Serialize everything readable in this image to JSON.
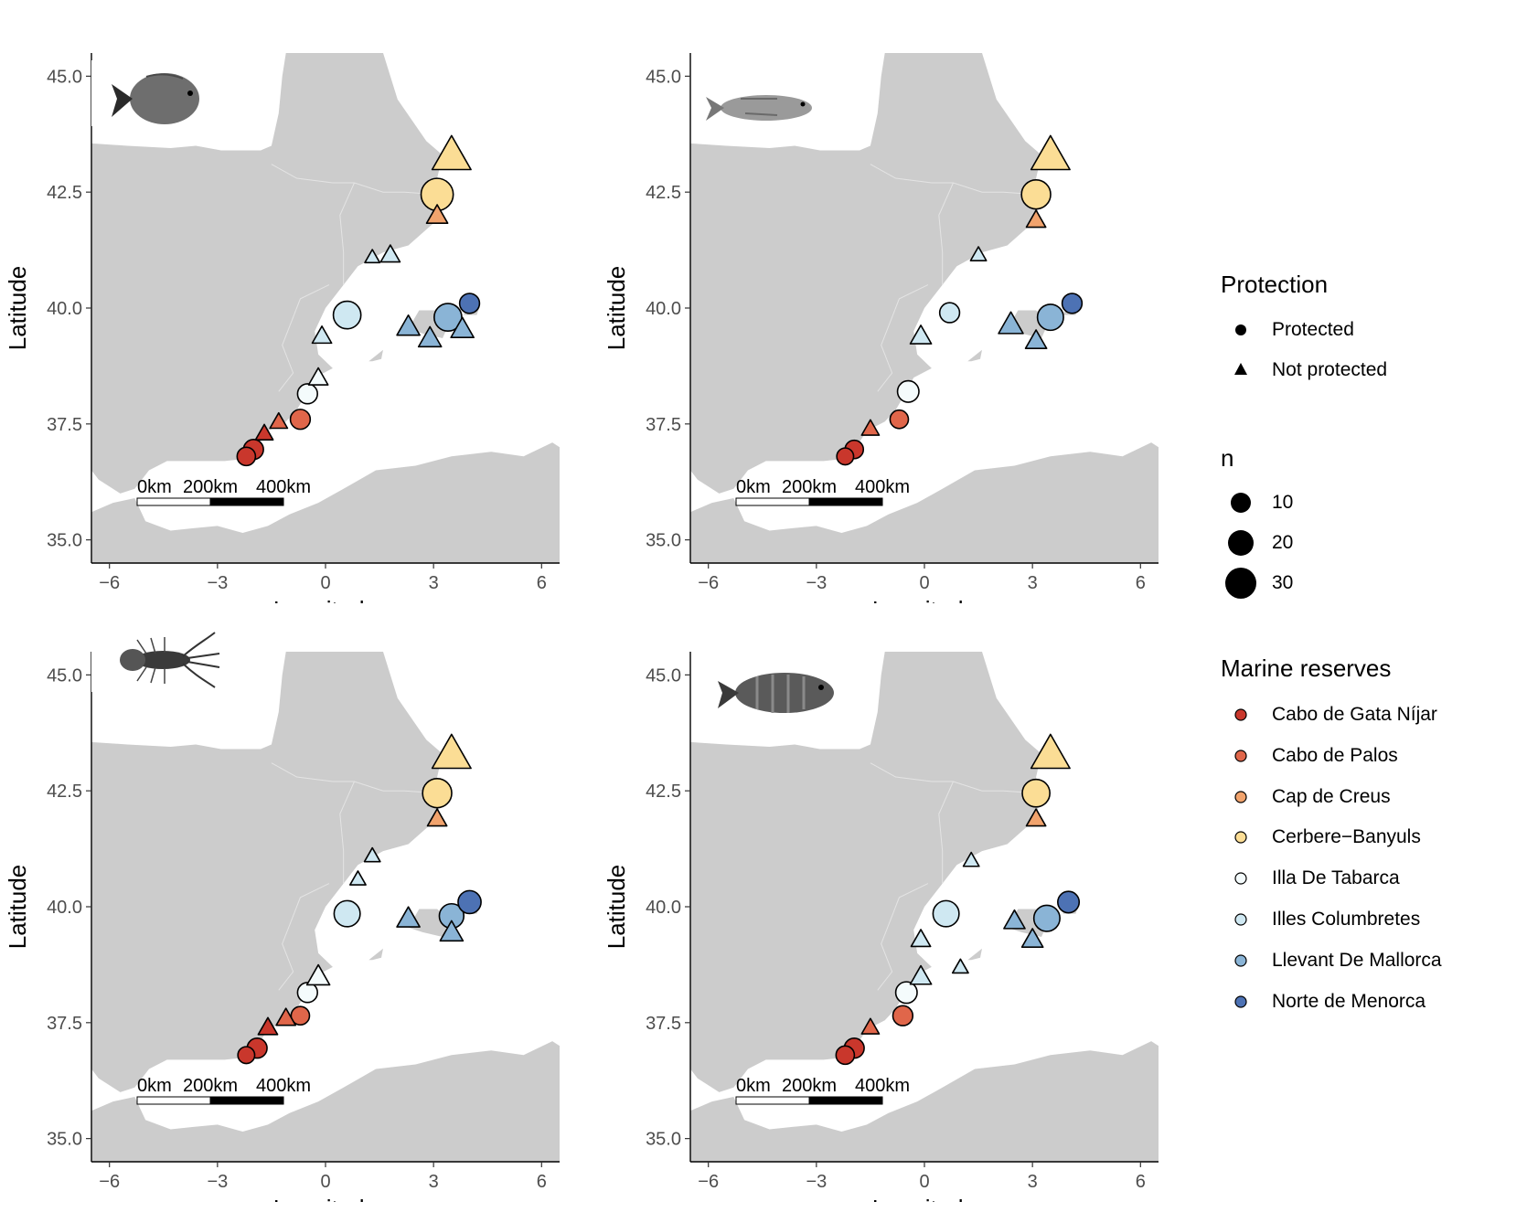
{
  "axis_labels": {
    "x": "Longitude",
    "y": "Latitude",
    "x_ticks": [
      "−6",
      "−3",
      "0",
      "3",
      "6"
    ],
    "y_ticks": [
      "35.0",
      "37.5",
      "40.0",
      "42.5",
      "45.0"
    ]
  },
  "scale_bar": {
    "labels": [
      "0km",
      "200km",
      "400km"
    ]
  },
  "colors": {
    "land": "#cccccc",
    "sea": "#ffffff",
    "Cabo de Gata Níjar": "#c9372c",
    "Cabo de Palos": "#e0664a",
    "Cap de Creus": "#f1a36d",
    "Cerbere−Banyuls": "#fbdd95",
    "Illa De Tabarca": "#f4fbfc",
    "Illes Columbretes": "#cfe8f2",
    "Llevant De Mallorca": "#8ab4d6",
    "Norte de Menorca": "#4d72b4"
  },
  "chart_data": [
    {
      "type": "scatter",
      "panel": "top-left",
      "species_icon": "saddled-seabream-fish-icon",
      "xlabel": "Longitude",
      "ylabel": "Latitude",
      "xlim": [
        -6.5,
        6.5
      ],
      "ylim": [
        34.5,
        45.5
      ],
      "points": [
        {
          "reserve": "Cabo de Gata Níjar",
          "protection": "Protected",
          "lon": -2.2,
          "lat": 36.8,
          "n": 12
        },
        {
          "reserve": "Cabo de Gata Níjar",
          "protection": "Protected",
          "lon": -2.0,
          "lat": 36.95,
          "n": 14
        },
        {
          "reserve": "Cabo de Gata Níjar",
          "protection": "Not protected",
          "lon": -1.7,
          "lat": 37.3,
          "n": 8
        },
        {
          "reserve": "Cabo de Palos",
          "protection": "Not protected",
          "lon": -1.3,
          "lat": 37.55,
          "n": 8
        },
        {
          "reserve": "Cabo de Palos",
          "protection": "Protected",
          "lon": -0.7,
          "lat": 37.6,
          "n": 14
        },
        {
          "reserve": "Illa De Tabarca",
          "protection": "Protected",
          "lon": -0.5,
          "lat": 38.15,
          "n": 14
        },
        {
          "reserve": "Illa De Tabarca",
          "protection": "Not protected",
          "lon": -0.2,
          "lat": 38.5,
          "n": 10
        },
        {
          "reserve": "Illes Columbretes",
          "protection": "Protected",
          "lon": 0.6,
          "lat": 39.85,
          "n": 24
        },
        {
          "reserve": "Illes Columbretes",
          "protection": "Not protected",
          "lon": -0.1,
          "lat": 39.4,
          "n": 10
        },
        {
          "reserve": "Illes Columbretes",
          "protection": "Not protected",
          "lon": 1.3,
          "lat": 41.1,
          "n": 5
        },
        {
          "reserve": "Illes Columbretes",
          "protection": "Not protected",
          "lon": 1.8,
          "lat": 41.15,
          "n": 10
        },
        {
          "reserve": "Llevant De Mallorca",
          "protection": "Not protected",
          "lon": 2.3,
          "lat": 39.6,
          "n": 14
        },
        {
          "reserve": "Llevant De Mallorca",
          "protection": "Protected",
          "lon": 3.4,
          "lat": 39.8,
          "n": 24
        },
        {
          "reserve": "Llevant De Mallorca",
          "protection": "Not protected",
          "lon": 2.9,
          "lat": 39.35,
          "n": 14
        },
        {
          "reserve": "Llevant De Mallorca",
          "protection": "Not protected",
          "lon": 3.8,
          "lat": 39.55,
          "n": 14
        },
        {
          "reserve": "Norte de Menorca",
          "protection": "Protected",
          "lon": 4.0,
          "lat": 40.1,
          "n": 14
        },
        {
          "reserve": "Cap de Creus",
          "protection": "Not protected",
          "lon": 3.1,
          "lat": 42.0,
          "n": 12
        },
        {
          "reserve": "Cerbere−Banyuls",
          "protection": "Protected",
          "lon": 3.1,
          "lat": 42.45,
          "n": 30
        },
        {
          "reserve": "Cerbere−Banyuls",
          "protection": "Not protected",
          "lon": 3.5,
          "lat": 43.3,
          "n": 32
        }
      ]
    },
    {
      "type": "scatter",
      "panel": "top-right",
      "species_icon": "brown-meagre-fish-icon",
      "xlabel": "Longitude",
      "ylabel": "Latitude",
      "xlim": [
        -6.5,
        6.5
      ],
      "ylim": [
        34.5,
        45.5
      ],
      "points": [
        {
          "reserve": "Cabo de Gata Níjar",
          "protection": "Protected",
          "lon": -2.2,
          "lat": 36.8,
          "n": 10
        },
        {
          "reserve": "Cabo de Gata Níjar",
          "protection": "Protected",
          "lon": -1.95,
          "lat": 36.95,
          "n": 12
        },
        {
          "reserve": "Cabo de Palos",
          "protection": "Not protected",
          "lon": -1.5,
          "lat": 37.4,
          "n": 8
        },
        {
          "reserve": "Cabo de Palos",
          "protection": "Protected",
          "lon": -0.7,
          "lat": 37.6,
          "n": 12
        },
        {
          "reserve": "Illa De Tabarca",
          "protection": "Protected",
          "lon": -0.45,
          "lat": 38.2,
          "n": 16
        },
        {
          "reserve": "Illes Columbretes",
          "protection": "Not protected",
          "lon": -0.1,
          "lat": 39.4,
          "n": 12
        },
        {
          "reserve": "Illes Columbretes",
          "protection": "Protected",
          "lon": 0.7,
          "lat": 39.9,
          "n": 14
        },
        {
          "reserve": "Illes Columbretes",
          "protection": "Not protected",
          "lon": 1.5,
          "lat": 41.15,
          "n": 6
        },
        {
          "reserve": "Llevant De Mallorca",
          "protection": "Not protected",
          "lon": 2.4,
          "lat": 39.65,
          "n": 16
        },
        {
          "reserve": "Llevant De Mallorca",
          "protection": "Protected",
          "lon": 3.5,
          "lat": 39.8,
          "n": 22
        },
        {
          "reserve": "Llevant De Mallorca",
          "protection": "Not protected",
          "lon": 3.1,
          "lat": 39.3,
          "n": 12
        },
        {
          "reserve": "Norte de Menorca",
          "protection": "Protected",
          "lon": 4.1,
          "lat": 40.1,
          "n": 14
        },
        {
          "reserve": "Cap de Creus",
          "protection": "Not protected",
          "lon": 3.1,
          "lat": 41.9,
          "n": 10
        },
        {
          "reserve": "Cerbere−Banyuls",
          "protection": "Protected",
          "lon": 3.1,
          "lat": 42.45,
          "n": 26
        },
        {
          "reserve": "Cerbere−Banyuls",
          "protection": "Not protected",
          "lon": 3.5,
          "lat": 43.3,
          "n": 32
        }
      ]
    },
    {
      "type": "scatter",
      "panel": "bottom-left",
      "species_icon": "spiny-lobster-icon",
      "xlabel": "Longitude",
      "ylabel": "Latitude",
      "xlim": [
        -6.5,
        6.5
      ],
      "ylim": [
        34.5,
        45.5
      ],
      "points": [
        {
          "reserve": "Cabo de Gata Níjar",
          "protection": "Protected",
          "lon": -2.2,
          "lat": 36.8,
          "n": 10
        },
        {
          "reserve": "Cabo de Gata Níjar",
          "protection": "Protected",
          "lon": -1.9,
          "lat": 36.95,
          "n": 14
        },
        {
          "reserve": "Cabo de Gata Níjar",
          "protection": "Not protected",
          "lon": -1.6,
          "lat": 37.4,
          "n": 10
        },
        {
          "reserve": "Cabo de Palos",
          "protection": "Not protected",
          "lon": -1.1,
          "lat": 37.6,
          "n": 10
        },
        {
          "reserve": "Cabo de Palos",
          "protection": "Protected",
          "lon": -0.7,
          "lat": 37.65,
          "n": 12
        },
        {
          "reserve": "Illa De Tabarca",
          "protection": "Protected",
          "lon": -0.5,
          "lat": 38.15,
          "n": 14
        },
        {
          "reserve": "Illa De Tabarca",
          "protection": "Not protected",
          "lon": -0.2,
          "lat": 38.5,
          "n": 14
        },
        {
          "reserve": "Illes Columbretes",
          "protection": "Protected",
          "lon": 0.6,
          "lat": 39.85,
          "n": 22
        },
        {
          "reserve": "Illes Columbretes",
          "protection": "Not protected",
          "lon": 0.9,
          "lat": 40.6,
          "n": 6
        },
        {
          "reserve": "Illes Columbretes",
          "protection": "Not protected",
          "lon": 1.3,
          "lat": 41.1,
          "n": 6
        },
        {
          "reserve": "Llevant De Mallorca",
          "protection": "Not protected",
          "lon": 2.3,
          "lat": 39.75,
          "n": 14
        },
        {
          "reserve": "Llevant De Mallorca",
          "protection": "Protected",
          "lon": 3.5,
          "lat": 39.8,
          "n": 20
        },
        {
          "reserve": "Llevant De Mallorca",
          "protection": "Not protected",
          "lon": 3.5,
          "lat": 39.45,
          "n": 14
        },
        {
          "reserve": "Norte de Menorca",
          "protection": "Protected",
          "lon": 4.0,
          "lat": 40.1,
          "n": 18
        },
        {
          "reserve": "Cap de Creus",
          "protection": "Not protected",
          "lon": 3.1,
          "lat": 41.9,
          "n": 10
        },
        {
          "reserve": "Cerbere−Banyuls",
          "protection": "Protected",
          "lon": 3.1,
          "lat": 42.45,
          "n": 26
        },
        {
          "reserve": "Cerbere−Banyuls",
          "protection": "Not protected",
          "lon": 3.5,
          "lat": 43.3,
          "n": 32
        }
      ]
    },
    {
      "type": "scatter",
      "panel": "bottom-right",
      "species_icon": "dusky-grouper-fish-icon",
      "xlabel": "Longitude",
      "ylabel": "Latitude",
      "xlim": [
        -6.5,
        6.5
      ],
      "ylim": [
        34.5,
        45.5
      ],
      "points": [
        {
          "reserve": "Cabo de Gata Níjar",
          "protection": "Protected",
          "lon": -2.2,
          "lat": 36.8,
          "n": 12
        },
        {
          "reserve": "Cabo de Gata Níjar",
          "protection": "Protected",
          "lon": -1.95,
          "lat": 36.95,
          "n": 14
        },
        {
          "reserve": "Cabo de Palos",
          "protection": "Not protected",
          "lon": -1.5,
          "lat": 37.4,
          "n": 8
        },
        {
          "reserve": "Cabo de Palos",
          "protection": "Protected",
          "lon": -0.6,
          "lat": 37.65,
          "n": 14
        },
        {
          "reserve": "Illa De Tabarca",
          "protection": "Protected",
          "lon": -0.5,
          "lat": 38.15,
          "n": 16
        },
        {
          "reserve": "Illes Columbretes",
          "protection": "Not protected",
          "lon": -0.1,
          "lat": 38.5,
          "n": 12
        },
        {
          "reserve": "Illes Columbretes",
          "protection": "Protected",
          "lon": 0.6,
          "lat": 39.85,
          "n": 22
        },
        {
          "reserve": "Illes Columbretes",
          "protection": "Not protected",
          "lon": -0.1,
          "lat": 39.3,
          "n": 10
        },
        {
          "reserve": "Illes Columbretes",
          "protection": "Not protected",
          "lon": 1.3,
          "lat": 41.0,
          "n": 6
        },
        {
          "reserve": "Illes Columbretes",
          "protection": "Not protected",
          "lon": 1.0,
          "lat": 38.7,
          "n": 6
        },
        {
          "reserve": "Llevant De Mallorca",
          "protection": "Not protected",
          "lon": 2.5,
          "lat": 39.7,
          "n": 12
        },
        {
          "reserve": "Llevant De Mallorca",
          "protection": "Protected",
          "lon": 3.4,
          "lat": 39.75,
          "n": 22
        },
        {
          "reserve": "Llevant De Mallorca",
          "protection": "Not protected",
          "lon": 3.0,
          "lat": 39.3,
          "n": 12
        },
        {
          "reserve": "Norte de Menorca",
          "protection": "Protected",
          "lon": 4.0,
          "lat": 40.1,
          "n": 16
        },
        {
          "reserve": "Cap de Creus",
          "protection": "Not protected",
          "lon": 3.1,
          "lat": 41.9,
          "n": 10
        },
        {
          "reserve": "Cerbere−Banyuls",
          "protection": "Protected",
          "lon": 3.1,
          "lat": 42.45,
          "n": 24
        },
        {
          "reserve": "Cerbere−Banyuls",
          "protection": "Not protected",
          "lon": 3.5,
          "lat": 43.3,
          "n": 32
        }
      ]
    }
  ],
  "legend": {
    "protection": {
      "title": "Protection",
      "items": [
        {
          "label": "Protected",
          "shape": "circle"
        },
        {
          "label": "Not protected",
          "shape": "triangle"
        }
      ]
    },
    "size": {
      "title": "n",
      "items": [
        {
          "label": "10",
          "n": 10
        },
        {
          "label": "20",
          "n": 20
        },
        {
          "label": "30",
          "n": 30
        }
      ]
    },
    "reserves": {
      "title": "Marine reserves",
      "items": [
        "Cabo de Gata Níjar",
        "Cabo de Palos",
        "Cap de Creus",
        "Cerbere−Banyuls",
        "Illa De Tabarca",
        "Illes Columbretes",
        "Llevant De Mallorca",
        "Norte de Menorca"
      ]
    }
  }
}
